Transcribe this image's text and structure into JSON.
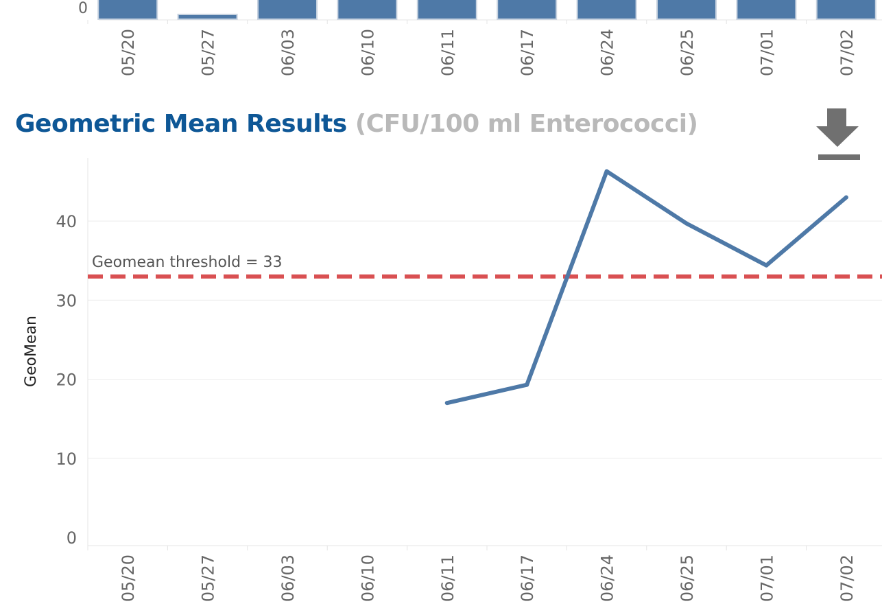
{
  "top_panel": {
    "y_tick_label": "0",
    "bar_color": "#4e79a7",
    "categories": [
      "05/20",
      "05/27",
      "06/03",
      "06/10",
      "06/11",
      "06/17",
      "06/24",
      "06/25",
      "07/01",
      "07/02"
    ]
  },
  "header": {
    "title": "Geometric Mean Results",
    "subtitle": "(CFU/100 ml Enterococci)",
    "title_color": "#0e5796",
    "subtitle_color": "#b9b9b9",
    "download_icon": "download-icon"
  },
  "chart_data": {
    "type": "line",
    "x": [
      "05/20",
      "05/27",
      "06/03",
      "06/10",
      "06/11",
      "06/17",
      "06/24",
      "06/25",
      "07/01",
      "07/02"
    ],
    "series": [
      {
        "values": [
          null,
          null,
          null,
          null,
          17,
          19.3,
          46.3,
          39.7,
          34.4,
          43
        ]
      }
    ],
    "ylabel": "GeoMean",
    "xlabel": "",
    "ylim": [
      0,
      48
    ],
    "yticks": [
      0,
      10,
      20,
      30,
      40
    ],
    "grid": true,
    "line_color": "#4e79a7",
    "threshold": {
      "value": 33,
      "label": "Geomean threshold = 33",
      "color": "#d95052"
    }
  }
}
